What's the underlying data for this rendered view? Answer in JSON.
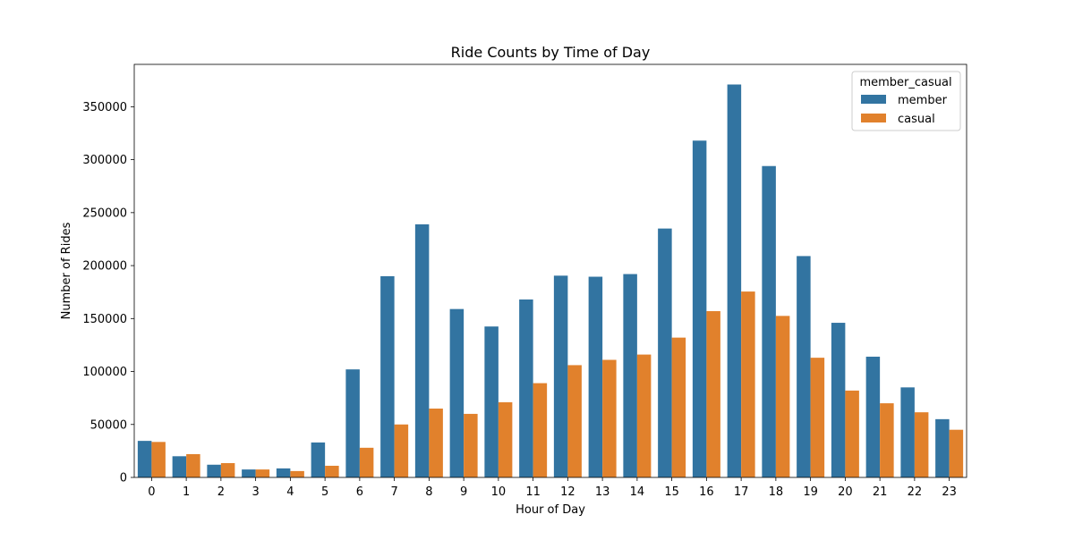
{
  "chart_data": {
    "type": "bar",
    "title": "Ride Counts by Time of Day",
    "xlabel": "Hour of Day",
    "ylabel": "Number of Rides",
    "ylim": [
      0,
      390000
    ],
    "yticks": [
      0,
      50000,
      100000,
      150000,
      200000,
      250000,
      300000,
      350000
    ],
    "ytick_labels": [
      "0",
      "50000",
      "100000",
      "150000",
      "200000",
      "250000",
      "300000",
      "350000"
    ],
    "categories": [
      "0",
      "1",
      "2",
      "3",
      "4",
      "5",
      "6",
      "7",
      "8",
      "9",
      "10",
      "11",
      "12",
      "13",
      "14",
      "15",
      "16",
      "17",
      "18",
      "19",
      "20",
      "21",
      "22",
      "23"
    ],
    "legend": {
      "title": "member_casual",
      "placement": "upper-right"
    },
    "grid": false,
    "series": [
      {
        "name": "member",
        "color": "#3274a1",
        "values": [
          34500,
          20000,
          12000,
          7500,
          8500,
          33000,
          102000,
          190000,
          239000,
          159000,
          142500,
          168000,
          190500,
          189500,
          192000,
          235000,
          318000,
          371000,
          294000,
          209000,
          146000,
          114000,
          85000,
          55000
        ]
      },
      {
        "name": "casual",
        "color": "#e1812c",
        "values": [
          33500,
          22000,
          13500,
          7500,
          6000,
          11000,
          28000,
          50000,
          65000,
          60000,
          71000,
          89000,
          106000,
          111000,
          116000,
          132000,
          157000,
          175500,
          152500,
          113000,
          82000,
          70000,
          61500,
          45000
        ]
      }
    ]
  }
}
